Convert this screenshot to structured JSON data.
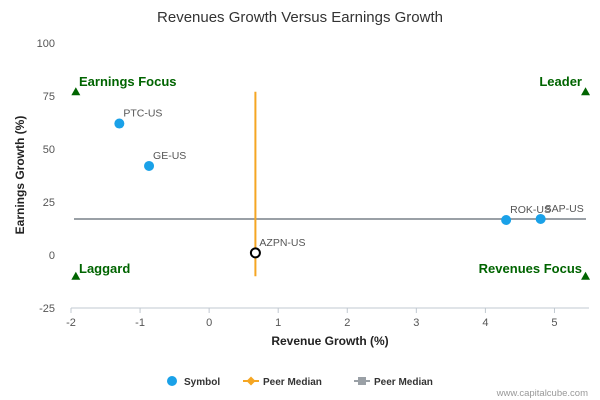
{
  "chart_data": {
    "type": "scatter",
    "title": "Revenues Growth Versus Earnings Growth",
    "xlabel": "Revenue Growth (%)",
    "ylabel": "Earnings Growth (%)",
    "xlim": [
      -2,
      5.5
    ],
    "ylim": [
      -25,
      100
    ],
    "x_ticks": [
      -2,
      -1,
      0,
      1,
      2,
      3,
      4,
      5
    ],
    "y_ticks": [
      100,
      75,
      50,
      25,
      0,
      -25
    ],
    "grid": false,
    "points": [
      {
        "label": "PTC-US",
        "x": -1.3,
        "y": 62,
        "style": "filled",
        "color": "#1aa1e8"
      },
      {
        "label": "GE-US",
        "x": -0.87,
        "y": 42,
        "style": "filled",
        "color": "#1aa1e8"
      },
      {
        "label": "ROK-US",
        "x": 4.3,
        "y": 16.5,
        "style": "filled",
        "color": "#1aa1e8"
      },
      {
        "label": "SAP-US",
        "x": 4.8,
        "y": 17,
        "style": "filled",
        "color": "#1aa1e8"
      },
      {
        "label": "AZPN-US",
        "x": 0.67,
        "y": 1,
        "style": "hollow",
        "color": "#000000"
      }
    ],
    "peer_median_x": {
      "value": 0.67,
      "y_range": [
        -10,
        77
      ],
      "color": "#f5a623"
    },
    "peer_median_y": {
      "value": 17,
      "x_range": [
        -2,
        5.5
      ],
      "color": "#9aa0a6"
    },
    "quadrant_labels": {
      "top_left": "Earnings Focus",
      "top_right": "Leader",
      "bottom_left": "Laggard",
      "bottom_right": "Revenues Focus"
    },
    "quadrant_markers": [
      {
        "x": -1.93,
        "y": 77
      },
      {
        "x": 5.45,
        "y": 77
      },
      {
        "x": -1.93,
        "y": -10
      },
      {
        "x": 5.45,
        "y": -10
      }
    ],
    "legend": [
      {
        "label": "Symbol",
        "kind": "circle",
        "color": "#1aa1e8"
      },
      {
        "label": "Peer Median",
        "kind": "line-diamond",
        "color": "#f5a623"
      },
      {
        "label": "Peer Median",
        "kind": "line-square",
        "color": "#9aa0a6"
      }
    ],
    "legend_position": "bottom-center",
    "quadrant_label_color": "#006400"
  },
  "credit": "www.capitalcube.com"
}
